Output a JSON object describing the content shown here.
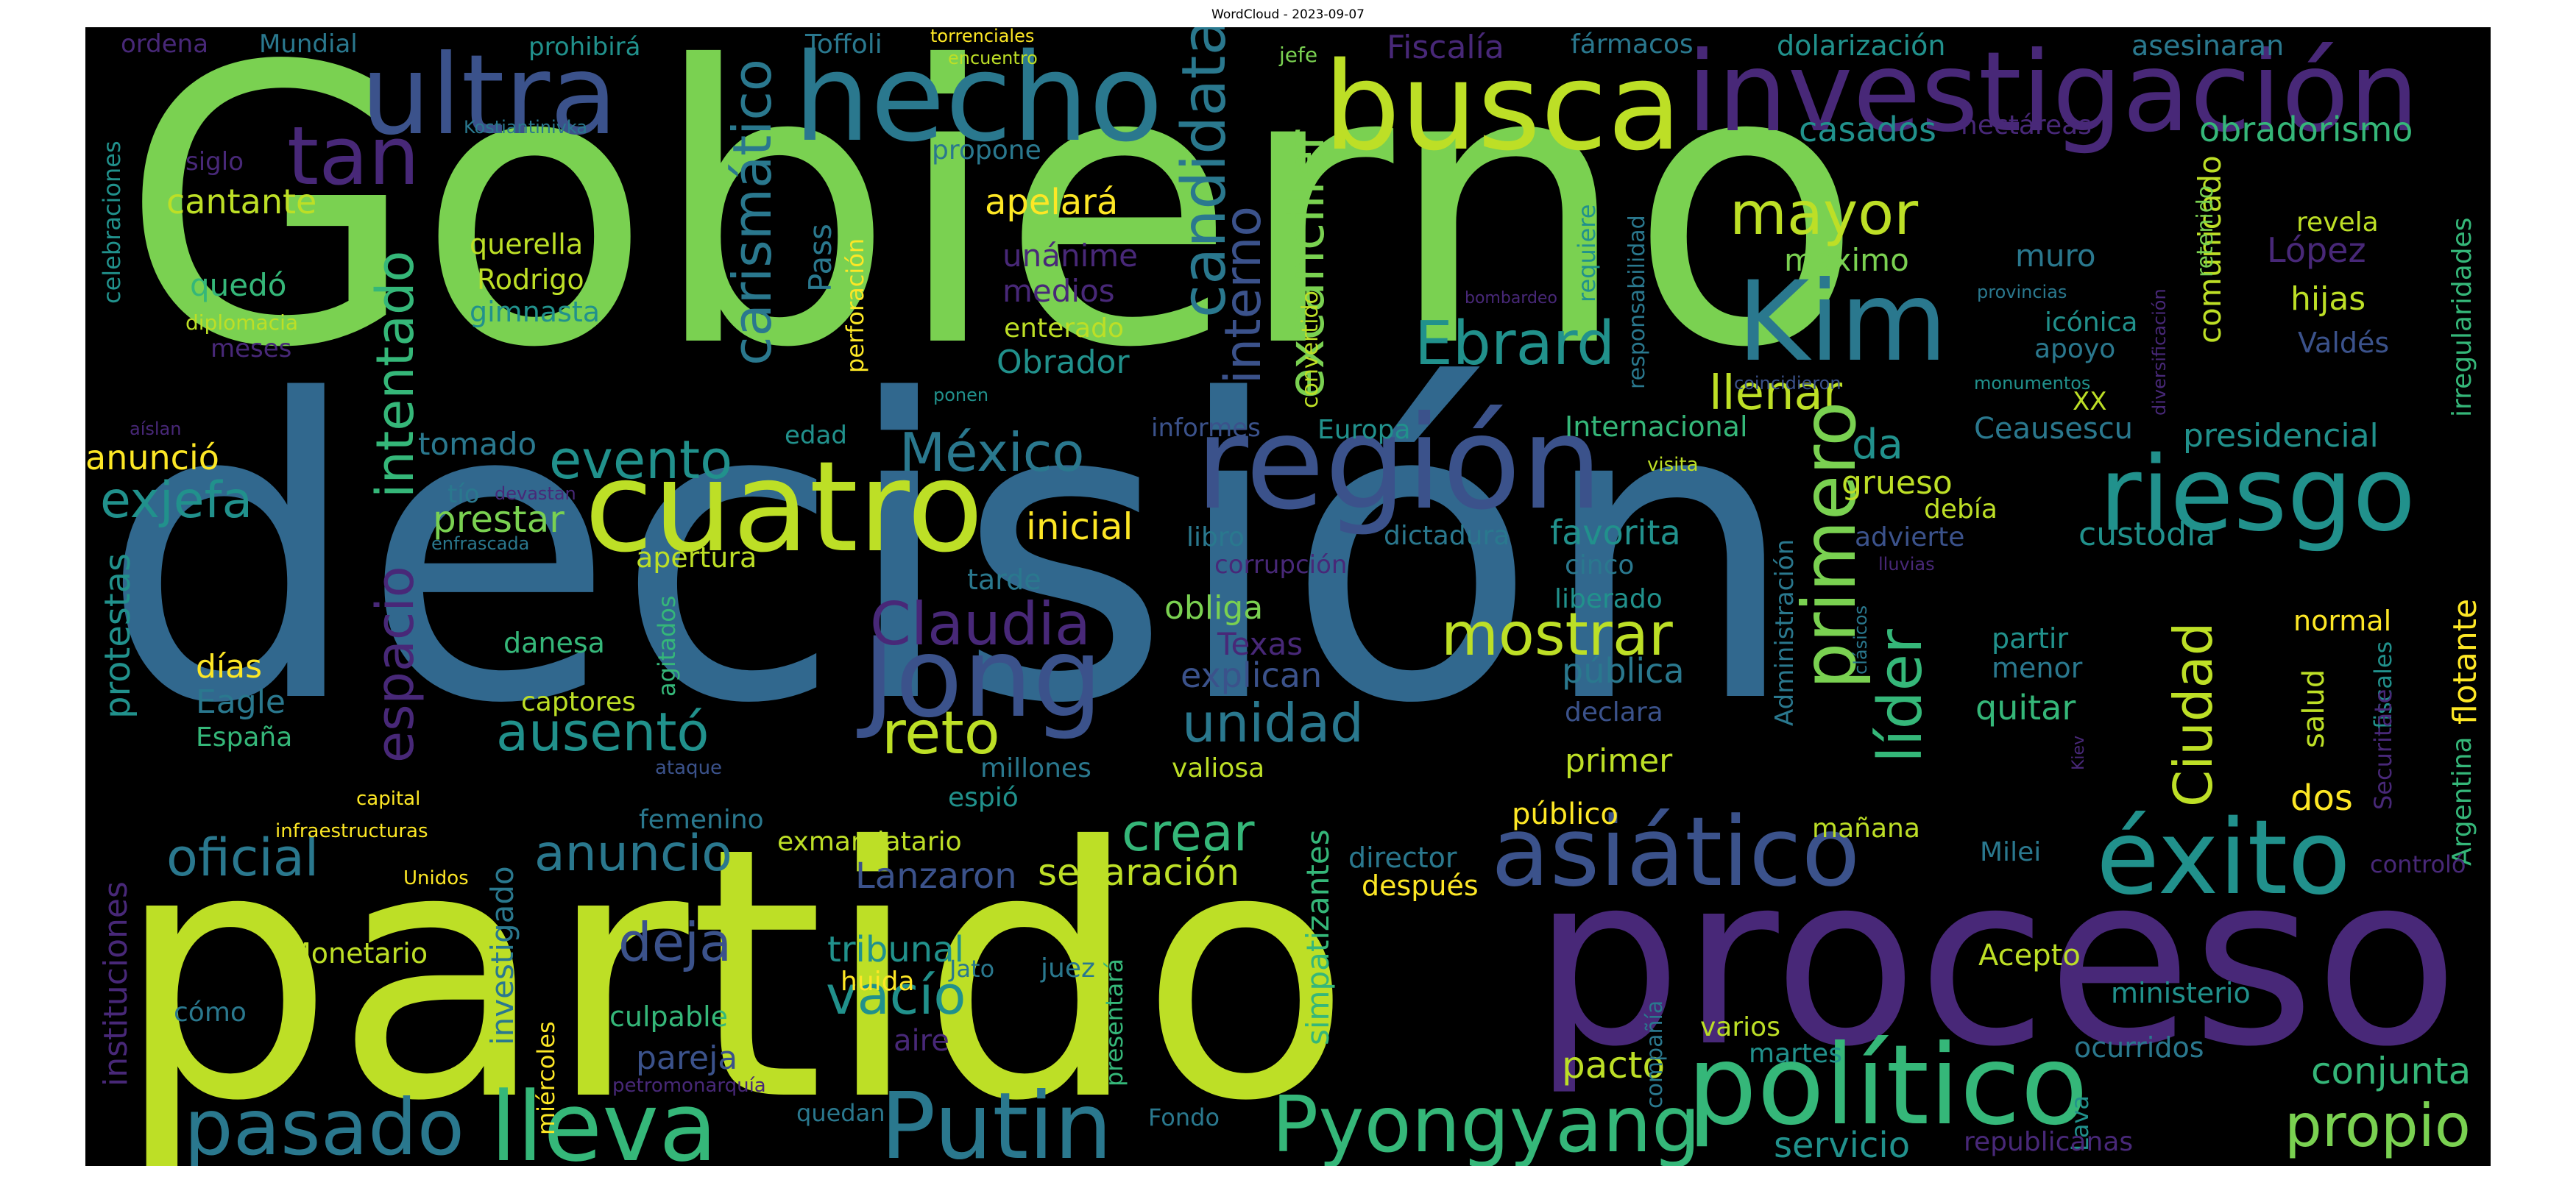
{
  "title": "WordCloud - 2023-09-07",
  "palette": {
    "c1": "#440154",
    "c2": "#3b528b",
    "c3": "#31688e",
    "c4": "#21918c",
    "c5": "#35b779",
    "c6": "#7ad151",
    "c7": "#bddf26",
    "c8": "#fde725",
    "c9": "#482878",
    "c10": "#2a788e",
    "c11": "#1f9e89",
    "c12": "#22a884",
    "c13": "#a0da39"
  },
  "words": {
    "gobierno": "Gobierno",
    "decision": "decisión",
    "partido": "partido",
    "proceso": "proceso",
    "investigacion": "investigación",
    "busca": "busca",
    "hecho": "hecho",
    "ultra": "ultra",
    "region": "región",
    "cuatro": "cuatro",
    "riesgo": "riesgo",
    "kim": "Kim",
    "jong": "Jong",
    "politico": "político",
    "asiatico": "asiático",
    "exito": "éxito",
    "putin": "Putin",
    "pyongyang": "Pyongyang",
    "lleva": "lleva",
    "pasado": "pasado",
    "propio": "propio",
    "tan": "tan",
    "carismatico": "carismático",
    "candidata": "candidata",
    "excanciller": "excanciller",
    "interno": "interno",
    "mayor": "mayor",
    "ebrard": "Ebrard",
    "llenar": "llenar",
    "evento": "evento",
    "mexico": "México",
    "exjefa": "exjefa",
    "espacio": "espacio",
    "intentado": "intentado",
    "primero": "primero",
    "lider": "líder",
    "ciudad": "Ciudad",
    "mostrar": "mostrar",
    "claudia": "Claudia",
    "reto": "reto",
    "unidad": "unidad",
    "ausento": "ausentó",
    "crear": "crear",
    "oficial": "oficial",
    "anuncio": "anuncio",
    "deja": "deja",
    "vacio": "vacío",
    "tribunal": "tribunal",
    "separacion": "separación",
    "lanzaron": "Lanzaron",
    "pacto": "pacto",
    "conjunta": "conjunta",
    "servicio": "servicio",
    "cantante": "cantante",
    "apelara": "apelará",
    "casados": "casados",
    "obradorismo": "obradorismo",
    "maximo": "máximo",
    "muro": "muro",
    "hijas": "hijas",
    "lopez": "López",
    "comunicado": "comunicado",
    "presidencial": "presidencial",
    "custodia": "custodia",
    "grueso": "grueso",
    "da": "da",
    "flotante": "flotante",
    "protestas": "protestas",
    "instituciones": "instituciones",
    "investigado": "investigado",
    "simpatizantes": "simpatizantes",
    "fiscalia": "Fiscalía",
    "farmacos": "fármacos",
    "dolarizacion": "dolarización",
    "asesinaran": "asesinaran",
    "ordena": "ordena",
    "mundial": "Mundial",
    "prohibira": "prohibirá",
    "toffoli": "Toffoli",
    "torrenciales": "torrenciales",
    "encuentro": "encuentro",
    "jefe": "jefe",
    "hectareas": "hectáreas",
    "kostiantinivka": "Kostiantinivka",
    "celebraciones": "celebraciones",
    "siglo": "siglo",
    "propone": "propone",
    "revela": "revela",
    "irregularidades": "irregularidades",
    "retenido": "retenido",
    "querella": "querella",
    "rodrigo": "Rodrigo",
    "gimnasta": "gimnasta",
    "quedo": "quedó",
    "diplomacia": "diplomacia",
    "meses": "meses",
    "pass": "Pass",
    "perforacion": "perforación",
    "unanime": "unánime",
    "medios": "medios",
    "enterado": "enterado",
    "obrador": "Obrador",
    "requiere": "requiere",
    "responsabilidad": "responsabilidad",
    "convertido": "convertido",
    "coincidieron": "coincidieron",
    "bombardeo": "bombardeo",
    "provincias": "provincias",
    "iconica": "icónica",
    "apoyo": "apoyo",
    "monumentos": "monumentos",
    "diversificacion": "diversificación",
    "valdes": "Valdés",
    "xx": "XX",
    "ponen": "ponen",
    "aislan": "aíslan",
    "anuncio2": "anunció",
    "tomado": "tomado",
    "edad": "edad",
    "informes": "informes",
    "europa": "Europa",
    "internacional": "Internacional",
    "visita": "visita",
    "ceausescu": "Ceausescu",
    "tio": "tío",
    "devastan": "devastan",
    "prestar": "prestar",
    "enfrascada": "enfrascada",
    "inicial": "inicial",
    "libro": "libro",
    "dictadura": "dictadura",
    "favorita": "favorita",
    "debia": "debía",
    "advierte": "advierte",
    "apertura": "apertura",
    "corrupcion": "corrupción",
    "cinco": "cinco",
    "lluvias": "lluvias",
    "administracion": "Administración",
    "tarde": "tarde",
    "obliga": "obliga",
    "liberado": "liberado",
    "clasicos": "clásicos",
    "agitados": "agitados",
    "danesa": "danesa",
    "texas": "Texas",
    "normal": "normal",
    "partir": "partir",
    "menor": "menor",
    "fiscales": "fiscales",
    "securitate": "Securitate",
    "argentina": "Argentina",
    "dias": "días",
    "explican": "explican",
    "publica": "pública",
    "declara": "declara",
    "quitar": "quitar",
    "salud": "salud",
    "eagle": "Eagle",
    "espana": "España",
    "captores": "captores",
    "ataque": "ataque",
    "kiev": "Kiev",
    "millones": "millones",
    "valiosa": "valiosa",
    "primer": "primer",
    "dos": "dos",
    "capital": "capital",
    "espio": "espió",
    "publico": "público",
    "infraestructuras": "infraestructuras",
    "femenino": "femenino",
    "exmandatario": "exmandatario",
    "manana": "mañana",
    "milei": "Milei",
    "controlo": "controló",
    "unidos": "Unidos",
    "director": "director",
    "despues": "después",
    "monetario": "Monetario",
    "miercoles": "miércoles",
    "huida": "huida",
    "jato": "Jato",
    "juez": "juez",
    "acepto": "Acepto",
    "ministerio": "ministerio",
    "como": "cómo",
    "culpable": "culpable",
    "aire": "aire",
    "presentara": "presentará",
    "compania": "compañía",
    "varios": "varios",
    "martes": "martes",
    "ocurridos": "ocurridos",
    "lava": "Lava",
    "pareja": "pareja",
    "petromonarquia": "petromonarquía",
    "quedan": "quedan",
    "fondo": "Fondo",
    "republicanas": "republicanas"
  }
}
